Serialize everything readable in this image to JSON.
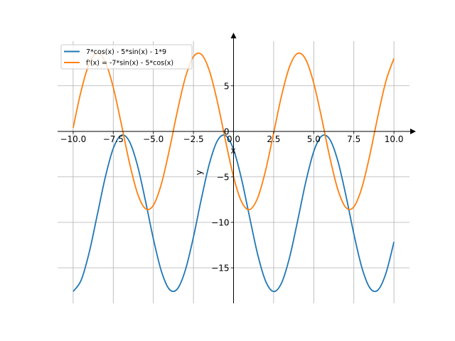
{
  "chart_data": {
    "type": "line",
    "title": "",
    "xlabel": "x",
    "ylabel": "y",
    "xlim": [
      -10.97,
      10.97
    ],
    "ylim": [
      -18.9,
      9.9
    ],
    "grid": true,
    "legend_position": "top-left",
    "x_ticks": [
      -10.0,
      -7.5,
      -5.0,
      -2.5,
      0.0,
      2.5,
      5.0,
      7.5,
      10.0
    ],
    "x_tick_labels": [
      "−10.0",
      "−7.5",
      "−5.0",
      "−2.5",
      "0.0",
      "2.5",
      "5.0",
      "7.5",
      "10.0"
    ],
    "y_ticks": [
      -15,
      -10,
      -5,
      0,
      5
    ],
    "y_tick_labels": [
      "−15",
      "−10",
      "−5",
      "0",
      "5"
    ],
    "x": [
      -10,
      -9.5,
      -9,
      -8.5,
      -8,
      -7.5,
      -7,
      -6.5,
      -6,
      -5.5,
      -5,
      -4.5,
      -4,
      -3.5,
      -3,
      -2.5,
      -2,
      -1.5,
      -1,
      -0.5,
      0,
      0.5,
      1,
      1.5,
      2,
      2.5,
      3,
      3.5,
      4,
      4.5,
      5,
      5.5,
      6,
      6.5,
      7,
      7.5,
      8,
      8.5,
      9,
      9.5,
      10
    ],
    "series": [
      {
        "name": "7*cos(x) - 5*sin(x) - 1*9",
        "color": "#1f77b4",
        "values": [
          -17.594,
          -16.356,
          -13.317,
          -9.221,
          -5.072,
          -1.884,
          -0.438,
          -1.088,
          -3.676,
          -7.567,
          -11.809,
          -15.364,
          -17.359,
          -17.31,
          -15.224,
          -11.615,
          -7.367,
          -3.517,
          -1.011,
          -0.46,
          -2.0,
          -5.254,
          -9.425,
          -13.493,
          -16.459,
          -17.6,
          -16.636,
          -13.802,
          -9.791,
          -5.588,
          -2.219,
          -0.511,
          -0.882,
          -3.24,
          -7.008,
          -11.264,
          -14.966,
          -17.207,
          -17.439,
          -15.604,
          -12.154
        ]
      },
      {
        "name": "f'(x) = -7*sin(x) - 5*cos(x)",
        "color": "#ff7f0e",
        "values": [
          0.388,
          4.46,
          7.441,
          8.6,
          7.654,
          4.833,
          0.829,
          -3.377,
          -6.757,
          -8.483,
          -8.131,
          -5.789,
          -2.03,
          2.227,
          5.938,
          8.196,
          8.446,
          6.629,
          3.188,
          -1.032,
          -5.0,
          -7.744,
          -8.592,
          -7.336,
          -4.284,
          -0.184,
          3.962,
          7.139,
          8.566,
          7.897,
          5.293,
          1.395,
          -2.845,
          -6.389,
          -8.369,
          -8.299,
          -6.198,
          -2.58,
          1.671,
          5.512,
          8.004
        ]
      }
    ]
  }
}
